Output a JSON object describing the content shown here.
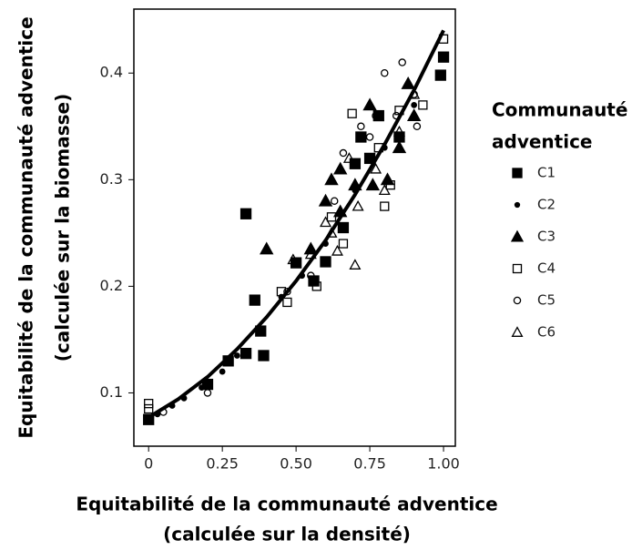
{
  "chart_data": {
    "type": "scatter",
    "x_label": [
      "Equitabilité de la communauté adventice",
      "(calculée sur la densité)"
    ],
    "y_label": [
      "Equitabilité de la communauté adventice",
      "(calculée sur la biomasse)"
    ],
    "legend_title": [
      "Communauté",
      "adventice"
    ],
    "legend_position": "right",
    "xlim": [
      -0.05,
      1.04
    ],
    "ylim": [
      0.05,
      0.46
    ],
    "xticks": [
      0,
      0.25,
      {
        "value": 0.5,
        "label": "0.50"
      },
      0.75,
      {
        "value": 1,
        "label": "1.00"
      }
    ],
    "yticks": [
      0.1,
      0.2,
      0.3,
      0.4
    ],
    "series": [
      {
        "name": "C1",
        "color": "#000000",
        "marker": "square",
        "filled": true,
        "x": [
          0,
          0.2,
          0.27,
          0.33,
          0.33,
          0.36,
          0.38,
          0.39,
          0.5,
          0.56,
          0.6,
          0.66,
          0.72,
          0.75,
          0.78,
          0.85,
          1.0,
          0.99,
          0.7
        ],
        "values": [
          0.075,
          0.108,
          0.13,
          0.268,
          0.137,
          0.187,
          0.158,
          0.135,
          0.222,
          0.205,
          0.223,
          0.255,
          0.34,
          0.32,
          0.36,
          0.34,
          0.415,
          0.398,
          0.315
        ]
      },
      {
        "name": "C2",
        "color": "#000000",
        "marker": "dot",
        "filled": true,
        "x": [
          0.03,
          0.08,
          0.12,
          0.18,
          0.25,
          0.3,
          0.38,
          0.45,
          0.52,
          0.6,
          0.7,
          0.8,
          0.9
        ],
        "values": [
          0.08,
          0.088,
          0.095,
          0.105,
          0.12,
          0.135,
          0.16,
          0.19,
          0.21,
          0.24,
          0.29,
          0.33,
          0.37
        ]
      },
      {
        "name": "C3",
        "color": "#000000",
        "marker": "triangle",
        "filled": true,
        "x": [
          0.4,
          0.55,
          0.62,
          0.65,
          0.7,
          0.76,
          0.75,
          0.81,
          0.85,
          0.88,
          0.9,
          0.65,
          0.6
        ],
        "values": [
          0.235,
          0.235,
          0.3,
          0.31,
          0.295,
          0.295,
          0.37,
          0.3,
          0.33,
          0.39,
          0.36,
          0.27,
          0.28
        ]
      },
      {
        "name": "C4",
        "color": "#000000",
        "marker": "square",
        "filled": false,
        "x": [
          0,
          0,
          0.47,
          0.45,
          0.57,
          0.62,
          0.66,
          0.69,
          0.8,
          0.82,
          0.85,
          0.93,
          1.0,
          0.78
        ],
        "values": [
          0.09,
          0.085,
          0.185,
          0.195,
          0.2,
          0.265,
          0.24,
          0.362,
          0.275,
          0.295,
          0.365,
          0.37,
          0.432,
          0.33
        ]
      },
      {
        "name": "C5",
        "color": "#000000",
        "marker": "circle",
        "filled": false,
        "x": [
          0.05,
          0.2,
          0.47,
          0.55,
          0.63,
          0.66,
          0.72,
          0.77,
          0.8,
          0.86,
          0.9,
          0.91,
          0.75,
          0.84
        ],
        "values": [
          0.082,
          0.1,
          0.195,
          0.21,
          0.28,
          0.325,
          0.35,
          0.36,
          0.4,
          0.41,
          0.38,
          0.35,
          0.34,
          0.36
        ]
      },
      {
        "name": "C6",
        "color": "#000000",
        "marker": "triangle",
        "filled": false,
        "x": [
          0.49,
          0.55,
          0.62,
          0.64,
          0.7,
          0.71,
          0.77,
          0.8,
          0.85,
          0.9,
          0.68,
          0.6
        ],
        "values": [
          0.225,
          0.23,
          0.25,
          0.233,
          0.22,
          0.275,
          0.31,
          0.29,
          0.345,
          0.38,
          0.32,
          0.26
        ]
      }
    ],
    "curve": {
      "color": "#000000",
      "x": [
        0,
        0.1,
        0.2,
        0.3,
        0.4,
        0.5,
        0.6,
        0.7,
        0.8,
        0.9,
        1.0
      ],
      "y": [
        0.077,
        0.094,
        0.115,
        0.141,
        0.171,
        0.205,
        0.243,
        0.286,
        0.333,
        0.384,
        0.44
      ]
    }
  }
}
